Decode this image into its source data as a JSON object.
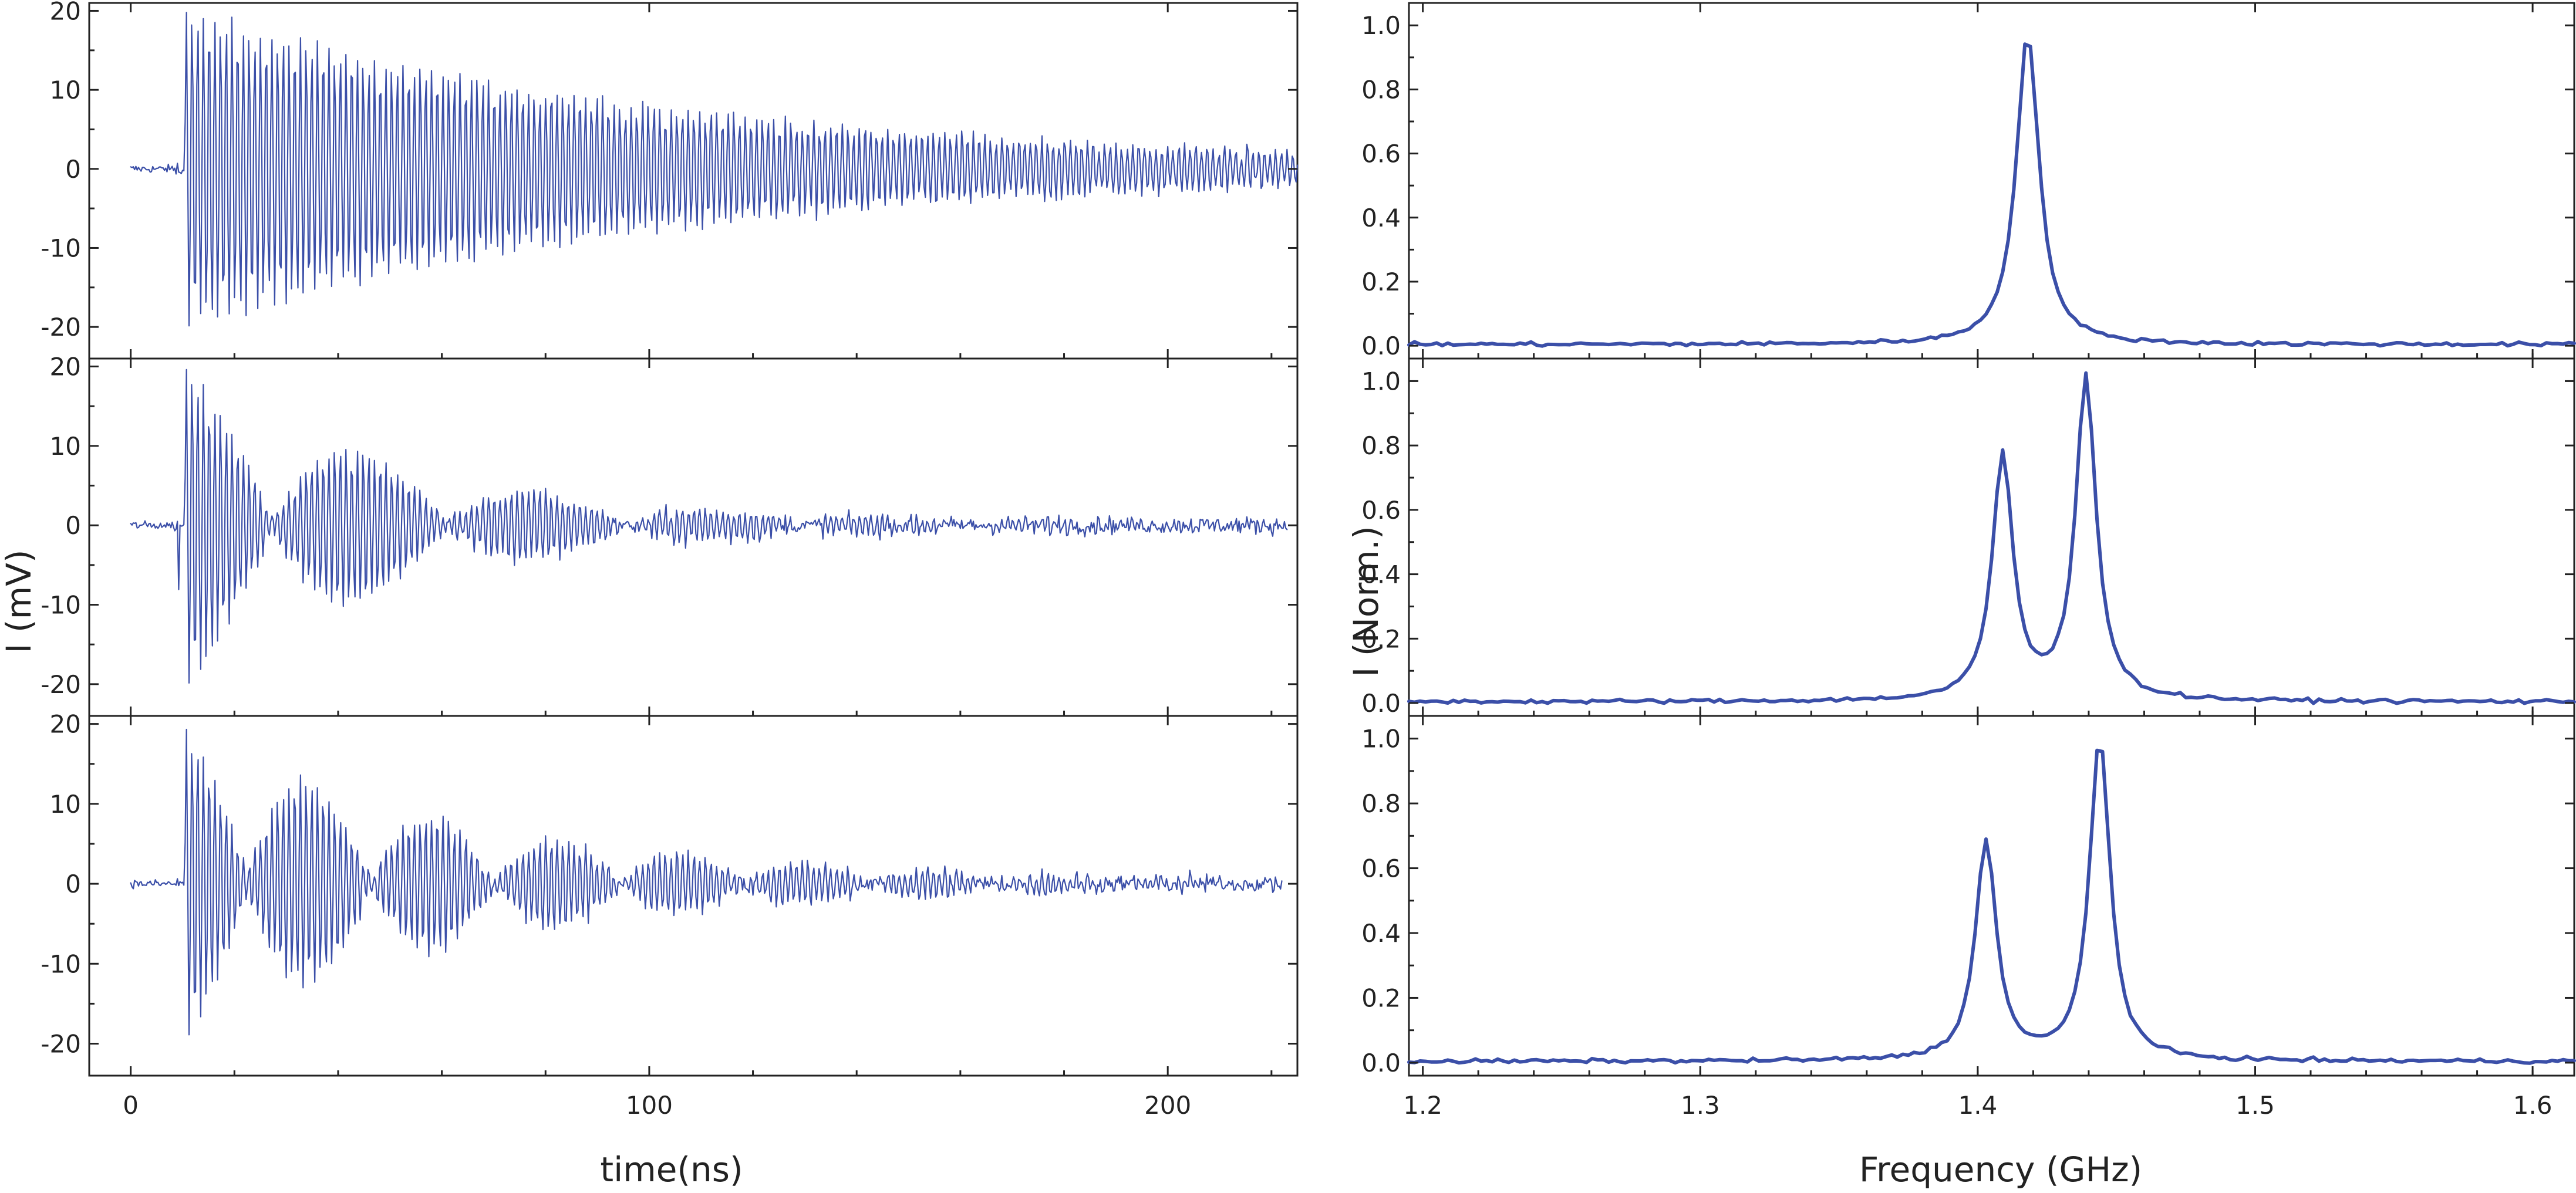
{
  "chart_data": [
    {
      "type": "line",
      "panel": "time-domain",
      "xlabel": "time(ns)",
      "ylabel": "I (mV)",
      "xlim": [
        -8,
        225
      ],
      "ylim": [
        -24,
        21
      ],
      "x_ticks": [
        0,
        100,
        200
      ],
      "y_ticks": [
        20,
        10,
        0,
        -10,
        -20
      ],
      "series_color": "#3b4fa8",
      "grid": false,
      "rows": [
        {
          "description_free_note": "",
          "onset_ns": 10.5,
          "carrier_period_ns": 1.1,
          "peak_amplitude_mV": 20,
          "envelope": "single exponential decay",
          "decay_time_ns": 95,
          "beat_period_ns": null,
          "noise_floor_mV": 1.0,
          "x_end_ns": 225
        },
        {
          "onset_ns": 10.5,
          "carrier_period_ns": 1.1,
          "peak_amplitude_mV": 20,
          "envelope": "beating, decaying",
          "decay_time_ns": 45,
          "beat_period_ns": 34,
          "noise_floor_mV": 1.0,
          "x_end_ns": 223
        },
        {
          "onset_ns": 10.5,
          "carrier_period_ns": 1.1,
          "peak_amplitude_mV": 19,
          "envelope": "beating, decaying",
          "decay_time_ns": 60,
          "beat_period_ns": 24,
          "noise_floor_mV": 1.0,
          "x_end_ns": 222
        }
      ]
    },
    {
      "type": "line",
      "panel": "frequency-domain",
      "xlabel": "Frequency (GHz)",
      "ylabel": "I (Norm.)",
      "xlim": [
        1.195,
        1.615
      ],
      "ylim": [
        -0.04,
        1.07
      ],
      "x_ticks": [
        1.2,
        1.3,
        1.4,
        1.5,
        1.6
      ],
      "y_ticks": [
        1.0,
        0.8,
        0.6,
        0.4,
        0.2,
        0.0
      ],
      "series_color": "#3b4fa8",
      "grid": false,
      "rows": [
        {
          "peaks": [
            {
              "center_GHz": 1.418,
              "height": 0.97,
              "width_GHz": 0.005
            }
          ]
        },
        {
          "peaks": [
            {
              "center_GHz": 1.409,
              "height": 0.76,
              "width_GHz": 0.0045
            },
            {
              "center_GHz": 1.439,
              "height": 1.0,
              "width_GHz": 0.0045
            }
          ]
        },
        {
          "peaks": [
            {
              "center_GHz": 1.403,
              "height": 0.68,
              "width_GHz": 0.0045
            },
            {
              "center_GHz": 1.444,
              "height": 1.0,
              "width_GHz": 0.0045
            }
          ]
        }
      ]
    }
  ]
}
